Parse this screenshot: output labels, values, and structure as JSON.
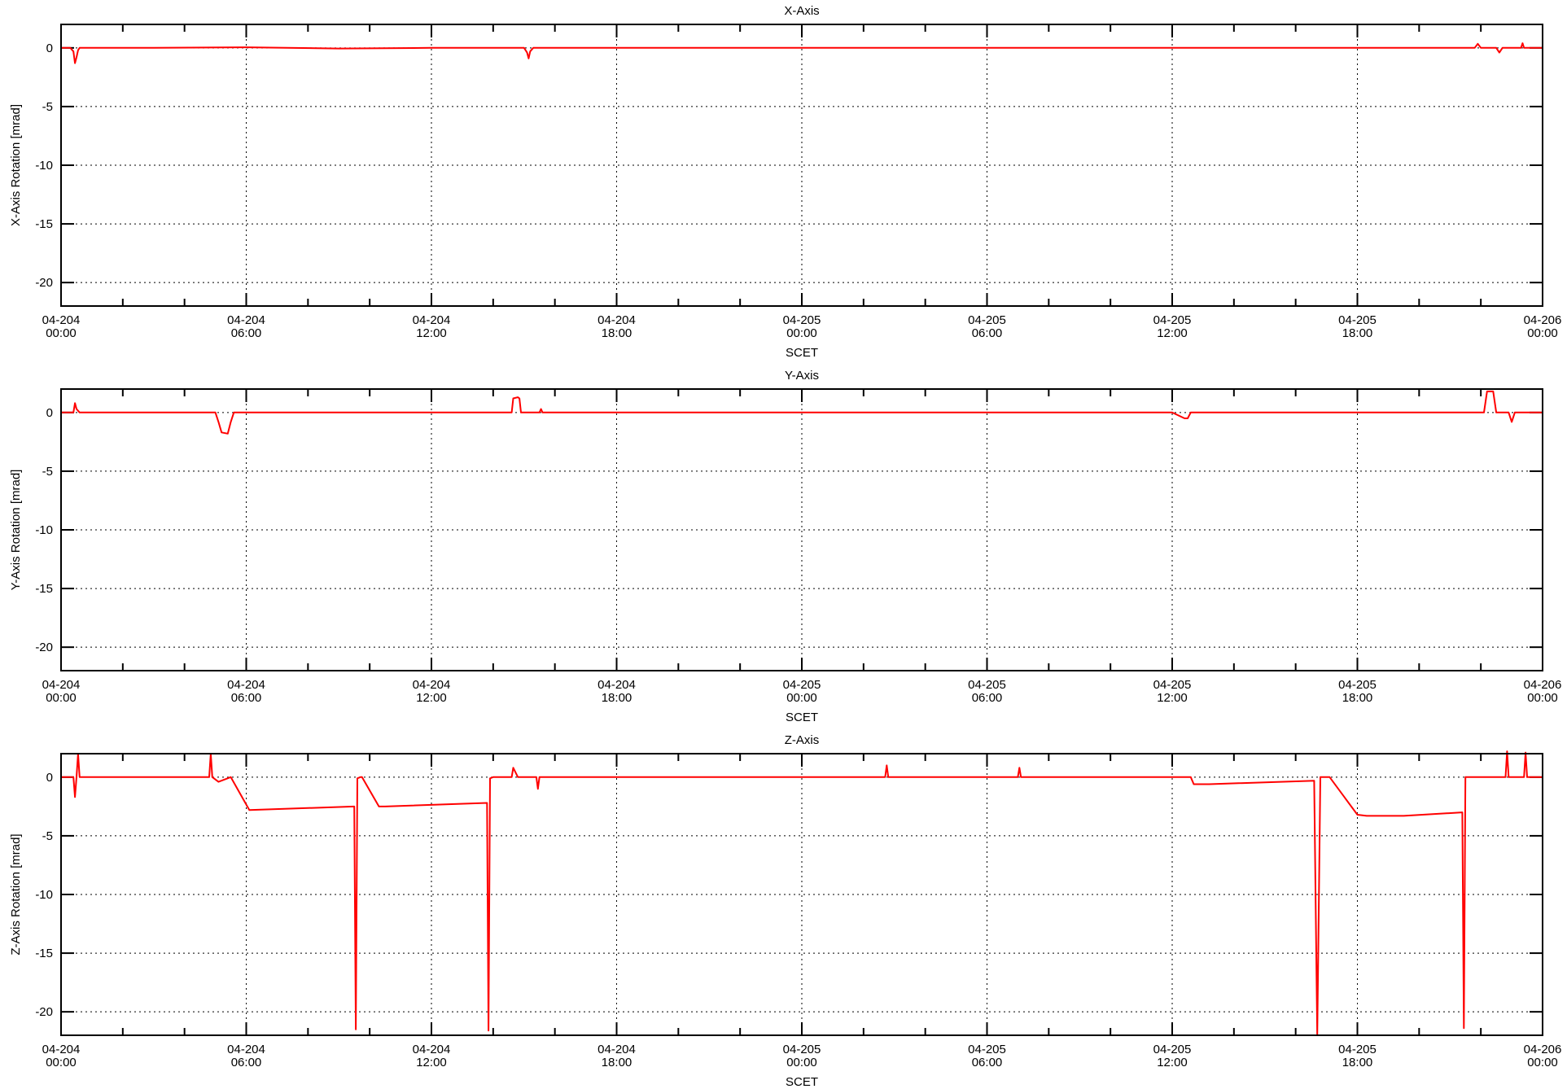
{
  "chart_data": [
    {
      "type": "line",
      "title": "X-Axis",
      "xlabel": "SCET",
      "ylabel": "X-Axis Rotation [mrad]",
      "ylim": [
        -22,
        2
      ],
      "xlim": [
        0,
        48
      ],
      "grid": true,
      "x_ticks": [
        {
          "t": 0,
          "day": "04-204",
          "time": "00:00"
        },
        {
          "t": 6,
          "day": "04-204",
          "time": "06:00"
        },
        {
          "t": 12,
          "day": "04-204",
          "time": "12:00"
        },
        {
          "t": 18,
          "day": "04-204",
          "time": "18:00"
        },
        {
          "t": 24,
          "day": "04-205",
          "time": "00:00"
        },
        {
          "t": 30,
          "day": "04-205",
          "time": "06:00"
        },
        {
          "t": 36,
          "day": "04-205",
          "time": "12:00"
        },
        {
          "t": 42,
          "day": "04-205",
          "time": "18:00"
        },
        {
          "t": 48,
          "day": "04-206",
          "time": "00:00"
        }
      ],
      "y_ticks": [
        0,
        -5,
        -10,
        -15,
        -20
      ],
      "series": [
        {
          "color": "#ff0000",
          "x": [
            0,
            0.3,
            0.4,
            0.45,
            0.5,
            0.55,
            0.6,
            3,
            6,
            9,
            12,
            15,
            15.1,
            15.15,
            15.2,
            15.3,
            18,
            24,
            30,
            36,
            42,
            45.8,
            45.9,
            46,
            46.5,
            46.6,
            46.7,
            47.3,
            47.35,
            47.4,
            48
          ],
          "y": [
            0,
            0,
            -0.3,
            -1.3,
            -0.8,
            -0.2,
            0,
            0,
            0.05,
            -0.05,
            0,
            0,
            -0.4,
            -0.9,
            -0.3,
            0,
            0,
            0,
            0,
            0,
            0,
            0,
            0.35,
            0,
            0,
            -0.4,
            0,
            0,
            0.4,
            0,
            0
          ]
        }
      ]
    },
    {
      "type": "line",
      "title": "Y-Axis",
      "xlabel": "SCET",
      "ylabel": "Y-Axis Rotation [mrad]",
      "ylim": [
        -22,
        2
      ],
      "xlim": [
        0,
        48
      ],
      "grid": true,
      "x_ticks": [
        {
          "t": 0,
          "day": "04-204",
          "time": "00:00"
        },
        {
          "t": 6,
          "day": "04-204",
          "time": "06:00"
        },
        {
          "t": 12,
          "day": "04-204",
          "time": "12:00"
        },
        {
          "t": 18,
          "day": "04-204",
          "time": "18:00"
        },
        {
          "t": 24,
          "day": "04-205",
          "time": "00:00"
        },
        {
          "t": 30,
          "day": "04-205",
          "time": "06:00"
        },
        {
          "t": 36,
          "day": "04-205",
          "time": "12:00"
        },
        {
          "t": 42,
          "day": "04-205",
          "time": "18:00"
        },
        {
          "t": 48,
          "day": "04-206",
          "time": "00:00"
        }
      ],
      "y_ticks": [
        0,
        -5,
        -10,
        -15,
        -20
      ],
      "series": [
        {
          "color": "#ff0000",
          "x": [
            0,
            0.4,
            0.45,
            0.5,
            0.6,
            5,
            5.1,
            5.2,
            5.4,
            5.5,
            5.6,
            6,
            12,
            14.6,
            14.65,
            14.8,
            14.85,
            14.9,
            15.5,
            15.55,
            15.6,
            24,
            36,
            36.4,
            36.5,
            36.6,
            42,
            46.1,
            46.2,
            46.4,
            46.5,
            46.9,
            47,
            47.1,
            48
          ],
          "y": [
            0,
            0,
            0.8,
            0.3,
            0,
            0,
            -0.8,
            -1.7,
            -1.8,
            -0.8,
            0,
            0,
            0,
            0,
            1.2,
            1.3,
            1.2,
            0,
            0,
            0.3,
            0,
            0,
            0,
            -0.5,
            -0.5,
            0,
            0,
            0,
            1.8,
            1.8,
            0,
            0,
            -0.8,
            0,
            0
          ]
        }
      ]
    },
    {
      "type": "line",
      "title": "Z-Axis",
      "xlabel": "SCET",
      "ylabel": "Z-Axis Rotation [mrad]",
      "ylim": [
        -22,
        2
      ],
      "xlim": [
        0,
        48
      ],
      "grid": true,
      "x_ticks": [
        {
          "t": 0,
          "day": "04-204",
          "time": "00:00"
        },
        {
          "t": 6,
          "day": "04-204",
          "time": "06:00"
        },
        {
          "t": 12,
          "day": "04-204",
          "time": "12:00"
        },
        {
          "t": 18,
          "day": "04-204",
          "time": "18:00"
        },
        {
          "t": 24,
          "day": "04-205",
          "time": "00:00"
        },
        {
          "t": 30,
          "day": "04-205",
          "time": "06:00"
        },
        {
          "t": 36,
          "day": "04-205",
          "time": "12:00"
        },
        {
          "t": 42,
          "day": "04-205",
          "time": "18:00"
        },
        {
          "t": 48,
          "day": "04-206",
          "time": "00:00"
        }
      ],
      "y_ticks": [
        0,
        -5,
        -10,
        -15,
        -20
      ],
      "series": [
        {
          "color": "#ff0000",
          "x": [
            0,
            0.4,
            0.45,
            0.5,
            0.55,
            0.6,
            4.8,
            4.85,
            4.9,
            5.1,
            5.3,
            5.5,
            6.1,
            9.5,
            9.55,
            9.6,
            9.7,
            9.75,
            10.3,
            10.5,
            13.8,
            13.85,
            13.9,
            14,
            14.1,
            14.6,
            14.65,
            14.8,
            15.4,
            15.45,
            15.5,
            24,
            26.7,
            26.75,
            26.8,
            31,
            31.05,
            31.1,
            36.6,
            36.7,
            37.2,
            40.6,
            40.7,
            40.8,
            40.9,
            41.1,
            42,
            42.3,
            43.5,
            45.4,
            45.45,
            45.5,
            45.6,
            45.7,
            46,
            46.8,
            46.85,
            46.9,
            47.2,
            47.4,
            47.45,
            47.5,
            48
          ],
          "y": [
            0,
            0,
            -1.7,
            0,
            2,
            0,
            0,
            2,
            0,
            -0.4,
            -0.2,
            0,
            -2.8,
            -2.5,
            -21.5,
            -0.1,
            0,
            0,
            -2.5,
            -2.5,
            -2.2,
            -21.6,
            -0.1,
            0,
            0,
            0,
            0.8,
            0,
            0,
            -1,
            0,
            0,
            0,
            1,
            0,
            0,
            0.8,
            0,
            0,
            -0.6,
            -0.6,
            -0.3,
            -22,
            0,
            0,
            0,
            -3.2,
            -3.3,
            -3.3,
            -3.0,
            -21.4,
            0,
            0,
            0,
            0,
            0,
            2.2,
            0,
            0,
            0,
            2.1,
            0,
            0
          ]
        }
      ]
    }
  ]
}
